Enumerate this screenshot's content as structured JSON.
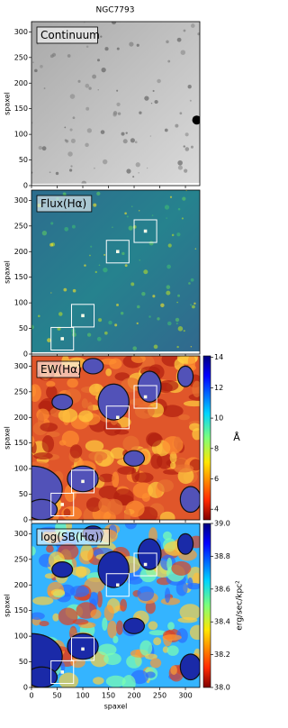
{
  "title": "NGC7793",
  "chart_data": [
    {
      "type": "image",
      "label": "Continuum",
      "ylabel": "spaxel",
      "xlim": [
        0,
        328
      ],
      "ylim": [
        0,
        320
      ],
      "xticks": [
        0,
        50,
        100,
        150,
        200,
        250,
        300
      ],
      "yticks": [
        0,
        50,
        100,
        150,
        200,
        250,
        300
      ],
      "colormap": "gray"
    },
    {
      "type": "image",
      "label": "Flux(Hα)",
      "ylabel": "spaxel",
      "xlim": [
        0,
        328
      ],
      "ylim": [
        0,
        320
      ],
      "xticks": [
        0,
        50,
        100,
        150,
        200,
        250,
        300
      ],
      "yticks": [
        0,
        50,
        100,
        150,
        200,
        250,
        300
      ],
      "colormap": "viridis"
    },
    {
      "type": "image",
      "label": "EW(Hα)",
      "ylabel": "spaxel",
      "xlim": [
        0,
        328
      ],
      "ylim": [
        0,
        320
      ],
      "xticks": [
        0,
        50,
        100,
        150,
        200,
        250,
        300
      ],
      "yticks": [
        0,
        50,
        100,
        150,
        200,
        250,
        300
      ],
      "colormap": "jet_r",
      "colorbar": {
        "label": "Å",
        "lim": [
          3.3,
          14.1
        ],
        "ticks": [
          4,
          6,
          8,
          10,
          12,
          14
        ]
      }
    },
    {
      "type": "image",
      "label": "log(SB(Hα))",
      "ylabel": "spaxel",
      "xlabel": "spaxel",
      "xlim": [
        0,
        328
      ],
      "ylim": [
        0,
        320
      ],
      "xticks": [
        0,
        50,
        100,
        150,
        200,
        250,
        300
      ],
      "yticks": [
        0,
        50,
        100,
        150,
        200,
        250,
        300
      ],
      "colormap": "jet_r",
      "colorbar": {
        "label": "erg/sec/kpc²",
        "lim": [
          38.0,
          39.0
        ],
        "ticks": [
          {
            "value": 38.0,
            "label": "38.0"
          },
          38.2,
          38.4,
          38.6,
          38.8,
          {
            "value": 39.0,
            "label": "39.0"
          }
        ]
      }
    }
  ]
}
